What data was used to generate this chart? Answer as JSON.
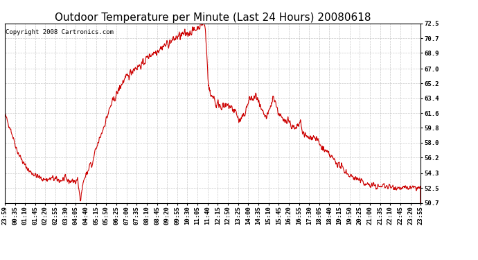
{
  "title": "Outdoor Temperature per Minute (Last 24 Hours) 20080618",
  "copyright_text": "Copyright 2008 Cartronics.com",
  "line_color": "#cc0000",
  "bg_color": "#ffffff",
  "grid_color": "#bbbbbb",
  "ylim": [
    50.7,
    72.5
  ],
  "yticks": [
    50.7,
    52.5,
    54.3,
    56.2,
    58.0,
    59.8,
    61.6,
    63.4,
    65.2,
    67.0,
    68.9,
    70.7,
    72.5
  ],
  "xtick_labels": [
    "23:59",
    "00:35",
    "01:10",
    "01:45",
    "02:20",
    "02:55",
    "03:30",
    "04:05",
    "04:40",
    "05:15",
    "05:50",
    "06:25",
    "07:00",
    "07:35",
    "08:10",
    "08:45",
    "09:20",
    "09:55",
    "10:30",
    "11:05",
    "11:40",
    "12:15",
    "12:50",
    "13:25",
    "14:00",
    "14:35",
    "15:10",
    "15:45",
    "16:20",
    "16:55",
    "17:30",
    "18:05",
    "18:40",
    "19:15",
    "19:50",
    "20:25",
    "21:00",
    "21:35",
    "22:10",
    "22:45",
    "23:20",
    "23:55"
  ],
  "title_fontsize": 11,
  "copyright_fontsize": 6.5,
  "tick_fontsize": 6.5,
  "line_width": 0.8,
  "keypoints": [
    [
      0.0,
      61.5
    ],
    [
      0.015,
      59.5
    ],
    [
      0.03,
      57.0
    ],
    [
      0.045,
      55.5
    ],
    [
      0.06,
      54.5
    ],
    [
      0.075,
      54.0
    ],
    [
      0.09,
      53.6
    ],
    [
      0.105,
      53.5
    ],
    [
      0.115,
      53.7
    ],
    [
      0.125,
      53.5
    ],
    [
      0.135,
      53.4
    ],
    [
      0.145,
      53.6
    ],
    [
      0.155,
      53.3
    ],
    [
      0.165,
      53.4
    ],
    [
      0.17,
      53.2
    ],
    [
      0.175,
      53.5
    ],
    [
      0.18,
      51.6
    ],
    [
      0.182,
      51.3
    ],
    [
      0.19,
      53.5
    ],
    [
      0.2,
      54.5
    ],
    [
      0.205,
      55.5
    ],
    [
      0.21,
      55.0
    ],
    [
      0.215,
      56.5
    ],
    [
      0.225,
      58.0
    ],
    [
      0.235,
      59.5
    ],
    [
      0.245,
      61.0
    ],
    [
      0.255,
      62.5
    ],
    [
      0.265,
      63.5
    ],
    [
      0.275,
      64.5
    ],
    [
      0.285,
      65.5
    ],
    [
      0.295,
      66.0
    ],
    [
      0.31,
      67.0
    ],
    [
      0.33,
      67.5
    ],
    [
      0.345,
      68.5
    ],
    [
      0.36,
      69.0
    ],
    [
      0.375,
      69.5
    ],
    [
      0.39,
      70.0
    ],
    [
      0.405,
      70.5
    ],
    [
      0.42,
      71.0
    ],
    [
      0.435,
      71.2
    ],
    [
      0.448,
      71.5
    ],
    [
      0.46,
      71.8
    ],
    [
      0.47,
      72.3
    ],
    [
      0.478,
      72.5
    ],
    [
      0.482,
      72.0
    ],
    [
      0.49,
      65.0
    ],
    [
      0.496,
      63.5
    ],
    [
      0.502,
      63.8
    ],
    [
      0.508,
      62.5
    ],
    [
      0.514,
      62.8
    ],
    [
      0.52,
      62.5
    ],
    [
      0.53,
      62.3
    ],
    [
      0.54,
      62.5
    ],
    [
      0.548,
      62.0
    ],
    [
      0.556,
      61.8
    ],
    [
      0.564,
      60.5
    ],
    [
      0.572,
      61.0
    ],
    [
      0.58,
      62.0
    ],
    [
      0.59,
      63.5
    ],
    [
      0.598,
      63.2
    ],
    [
      0.605,
      63.8
    ],
    [
      0.612,
      62.5
    ],
    [
      0.62,
      61.5
    ],
    [
      0.63,
      61.0
    ],
    [
      0.64,
      62.5
    ],
    [
      0.645,
      63.5
    ],
    [
      0.65,
      63.3
    ],
    [
      0.655,
      62.0
    ],
    [
      0.66,
      61.5
    ],
    [
      0.67,
      60.5
    ],
    [
      0.68,
      61.0
    ],
    [
      0.69,
      60.0
    ],
    [
      0.7,
      59.5
    ],
    [
      0.71,
      60.5
    ],
    [
      0.715,
      59.5
    ],
    [
      0.72,
      59.0
    ],
    [
      0.73,
      58.5
    ],
    [
      0.74,
      58.8
    ],
    [
      0.75,
      58.5
    ],
    [
      0.76,
      57.5
    ],
    [
      0.77,
      57.0
    ],
    [
      0.78,
      56.5
    ],
    [
      0.79,
      56.0
    ],
    [
      0.8,
      55.5
    ],
    [
      0.81,
      55.0
    ],
    [
      0.82,
      54.5
    ],
    [
      0.83,
      54.0
    ],
    [
      0.84,
      53.8
    ],
    [
      0.85,
      53.5
    ],
    [
      0.86,
      53.2
    ],
    [
      0.87,
      53.0
    ],
    [
      0.88,
      52.8
    ],
    [
      0.89,
      52.8
    ],
    [
      0.9,
      52.6
    ],
    [
      0.91,
      52.8
    ],
    [
      0.92,
      52.7
    ],
    [
      0.93,
      52.6
    ],
    [
      0.94,
      52.6
    ],
    [
      0.95,
      52.5
    ],
    [
      0.96,
      52.5
    ],
    [
      0.97,
      52.5
    ],
    [
      0.98,
      52.5
    ],
    [
      0.99,
      52.5
    ],
    [
      1.0,
      52.5
    ]
  ]
}
